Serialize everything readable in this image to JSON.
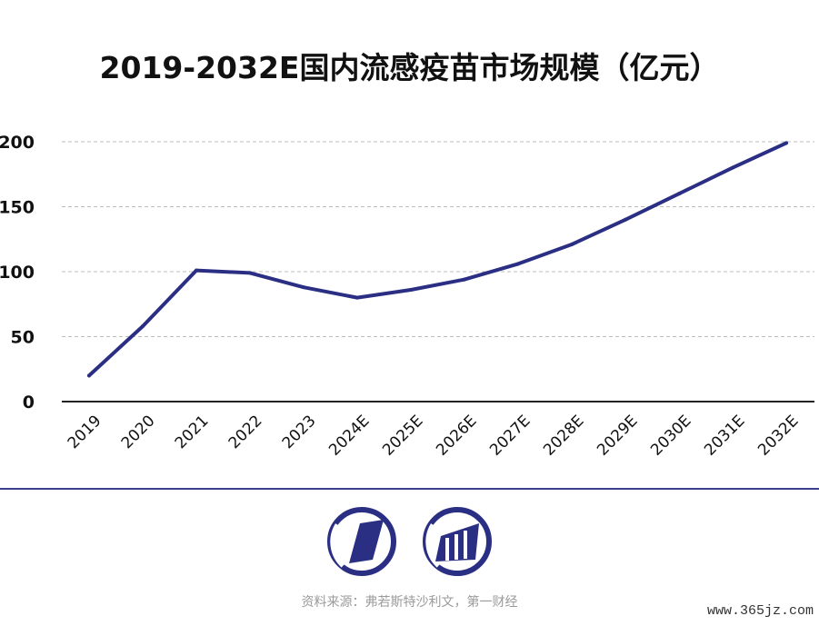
{
  "chart_data": {
    "type": "line",
    "title": "2019-2032E国内流感疫苗市场规模（亿元）",
    "categories": [
      "2019",
      "2020",
      "2021",
      "2022",
      "2023",
      "2024E",
      "2025E",
      "2026E",
      "2027E",
      "2028E",
      "2029E",
      "2030E",
      "2031E",
      "2032E"
    ],
    "series": [
      {
        "values": [
          20,
          58,
          101,
          99,
          88,
          80,
          86,
          94,
          106,
          121,
          140,
          160,
          180,
          199
        ]
      }
    ],
    "yticks": [
      "200",
      "150",
      "100",
      "50",
      "0"
    ],
    "ylim": [
      0,
      200
    ],
    "grid": true,
    "colors": {
      "line": "#2b2f84",
      "grid": "#bdbdbd",
      "axis": "#222222"
    }
  },
  "footer": {
    "source": "资料来源：弗若斯特沙利文，第一财经",
    "watermark": "www.365jz.com"
  },
  "logos": [
    "parallelogram-logo-icon",
    "columns-logo-icon"
  ]
}
